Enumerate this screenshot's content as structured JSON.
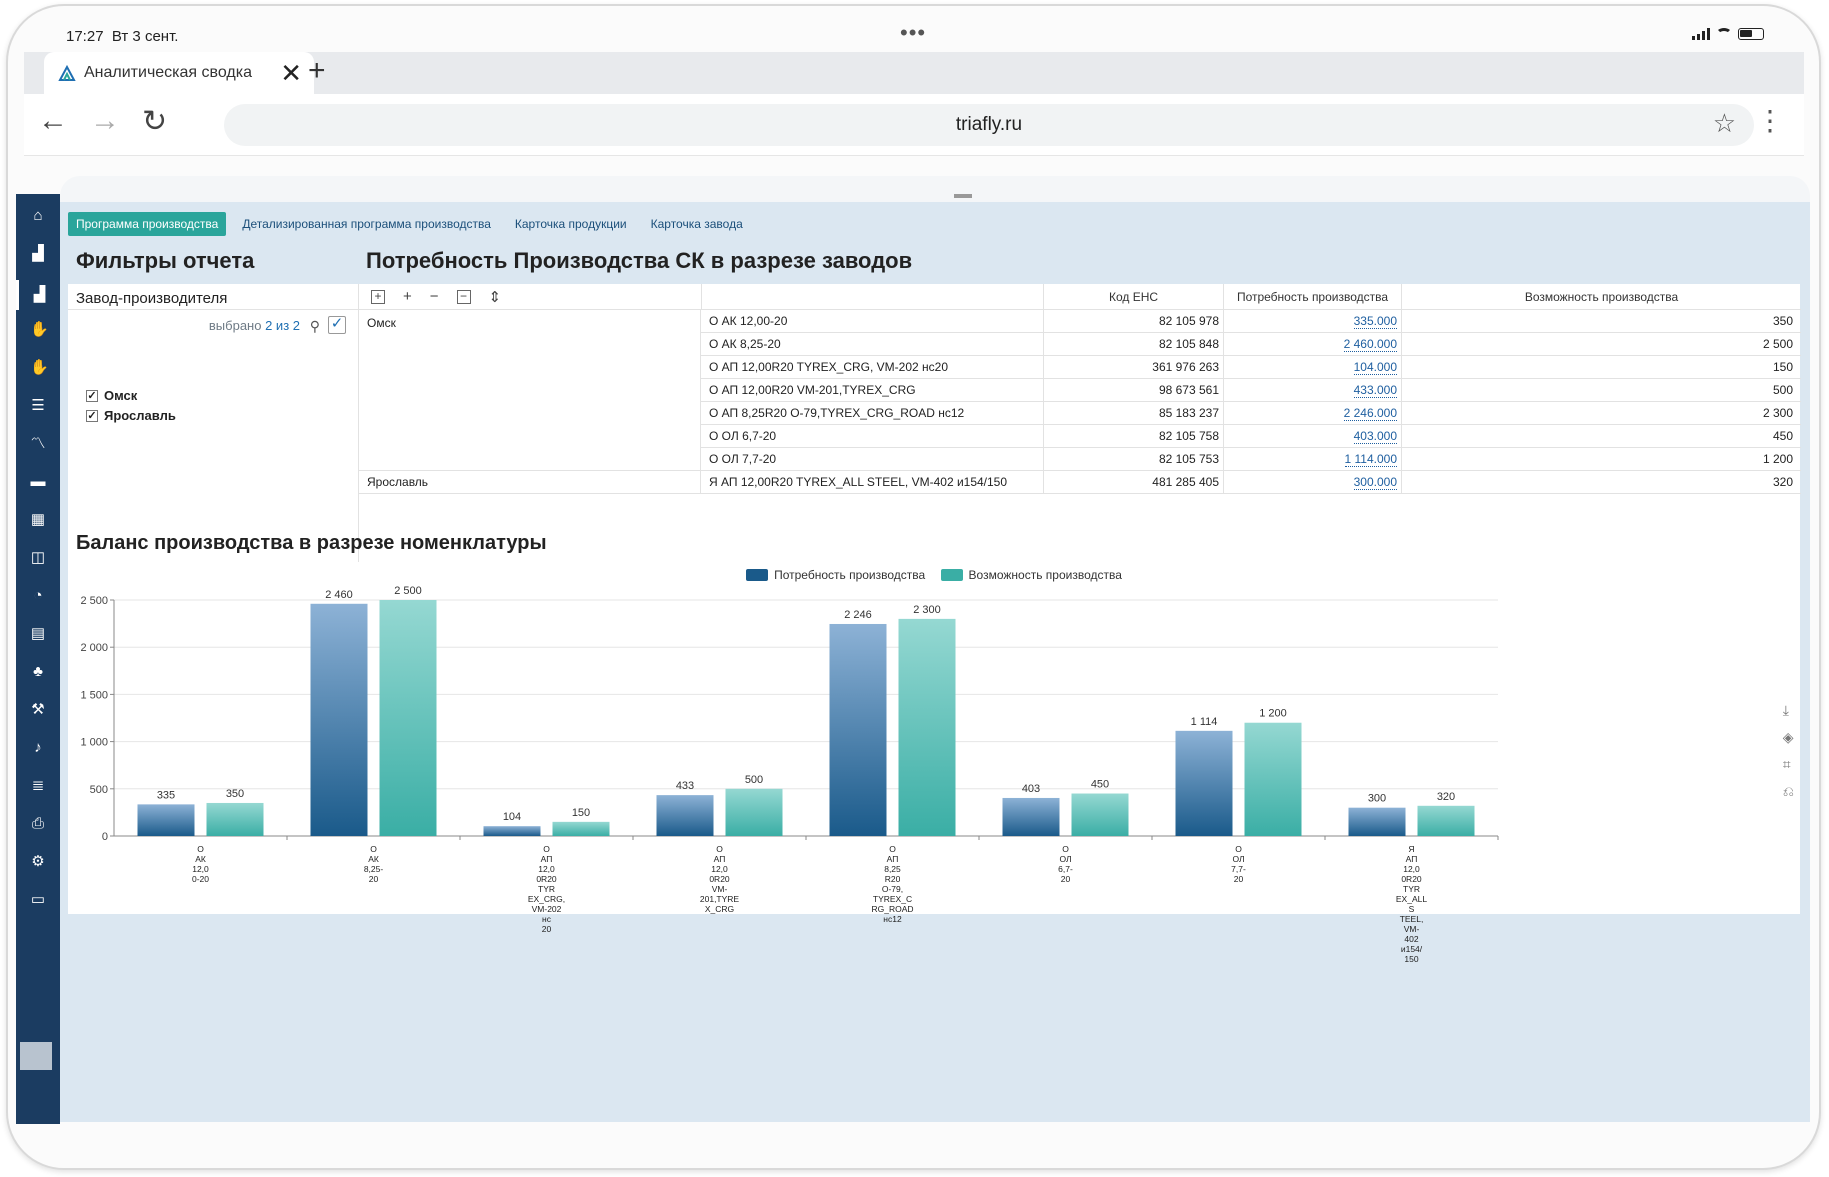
{
  "statusbar": {
    "time": "17:27",
    "date": "Вт 3 сент."
  },
  "browser": {
    "tab_title": "Аналитическая сводка",
    "url": "triafly.ru",
    "new_tab": "+",
    "close": "✕"
  },
  "top_tabs": [
    {
      "label": "Программа производства",
      "active": true
    },
    {
      "label": "Детализированная программа производства",
      "active": false
    },
    {
      "label": "Карточка продукции",
      "active": false
    },
    {
      "label": "Карточка завода",
      "active": false
    }
  ],
  "filters": {
    "title": "Фильтры отчета",
    "field": "Завод-производителя",
    "selected_prefix": "выбрано",
    "selected_count": "2 из 2",
    "items": [
      {
        "label": "Омск",
        "checked": true
      },
      {
        "label": "Ярославль",
        "checked": true
      }
    ]
  },
  "table": {
    "title": "Потребность Производства СК в разрезе заводов",
    "columns": [
      "Код ЕНС",
      "Потребность производства",
      "Возможность производства"
    ],
    "groups": [
      {
        "name": "Омск",
        "rows": [
          {
            "name": "О АК 12,00-20",
            "code": "82 105 978",
            "need": "335.000",
            "cap": "350"
          },
          {
            "name": "О АК 8,25-20",
            "code": "82 105 848",
            "need": "2 460.000",
            "cap": "2 500"
          },
          {
            "name": "О АП 12,00R20 TYREX_CRG, VM-202 нс20",
            "code": "361 976 263",
            "need": "104.000",
            "cap": "150"
          },
          {
            "name": "О АП 12,00R20 VM-201,TYREX_CRG",
            "code": "98 673 561",
            "need": "433.000",
            "cap": "500"
          },
          {
            "name": "О АП 8,25R20 О-79,TYREX_CRG_ROAD нс12",
            "code": "85 183 237",
            "need": "2 246.000",
            "cap": "2 300"
          },
          {
            "name": "О ОЛ 6,7-20",
            "code": "82 105 758",
            "need": "403.000",
            "cap": "450"
          },
          {
            "name": "О ОЛ 7,7-20",
            "code": "82 105 753",
            "need": "1 114.000",
            "cap": "1 200"
          }
        ]
      },
      {
        "name": "Ярославль",
        "rows": [
          {
            "name": "Я АП 12,00R20 TYREX_ALL STEEL, VM-402 и154/150",
            "code": "481 285 405",
            "need": "300.000",
            "cap": "320"
          }
        ]
      }
    ]
  },
  "chart_title": "Баланс производства в разрезе номенклатуры",
  "chart_data": {
    "type": "bar",
    "categories": [
      "О АК 12,0 0-20",
      "О АК 8,25- 20",
      "О АП 12,0 0R20 TYR EX_CRG, VM-202 нс 20",
      "О АП 12,0 0R20 VM- 201,TYRE X_CRG",
      "О АП 8,25 R20 О-79, TYREX_C RG_ROAD нс12",
      "О ОЛ 6,7- 20",
      "О ОЛ 7,7- 20",
      "Я АП 12,0 0R20 TYR EX_ALL S TEEL, VM- 402 и154/ 150"
    ],
    "series": [
      {
        "name": "Потребность производства",
        "values": [
          335,
          2460,
          104,
          433,
          2246,
          403,
          1114,
          300
        ],
        "labels": [
          "335",
          "2 460",
          "104",
          "433",
          "2 246",
          "403",
          "1 114",
          "300"
        ]
      },
      {
        "name": "Возможность производства",
        "values": [
          350,
          2500,
          150,
          500,
          2300,
          450,
          1200,
          320
        ],
        "labels": [
          "350",
          "2 500",
          "150",
          "500",
          "2 300",
          "450",
          "1 200",
          "320"
        ]
      }
    ],
    "ylim": [
      0,
      2500
    ],
    "yticks": [
      0,
      500,
      1000,
      1500,
      2000,
      2500
    ],
    "ytick_labels": [
      "0",
      "500",
      "1 000",
      "1 500",
      "2 000",
      "2 500"
    ],
    "grid": true,
    "legend": "top-center",
    "colors": {
      "need": "#1a5a8a",
      "need_light": "#8db2d6",
      "cap": "#3aaea5",
      "cap_light": "#95d8d2"
    }
  },
  "colors": {
    "sidebar": "#1b3c61",
    "accent": "#2aa59b",
    "page_bg": "#dbe7f1"
  }
}
